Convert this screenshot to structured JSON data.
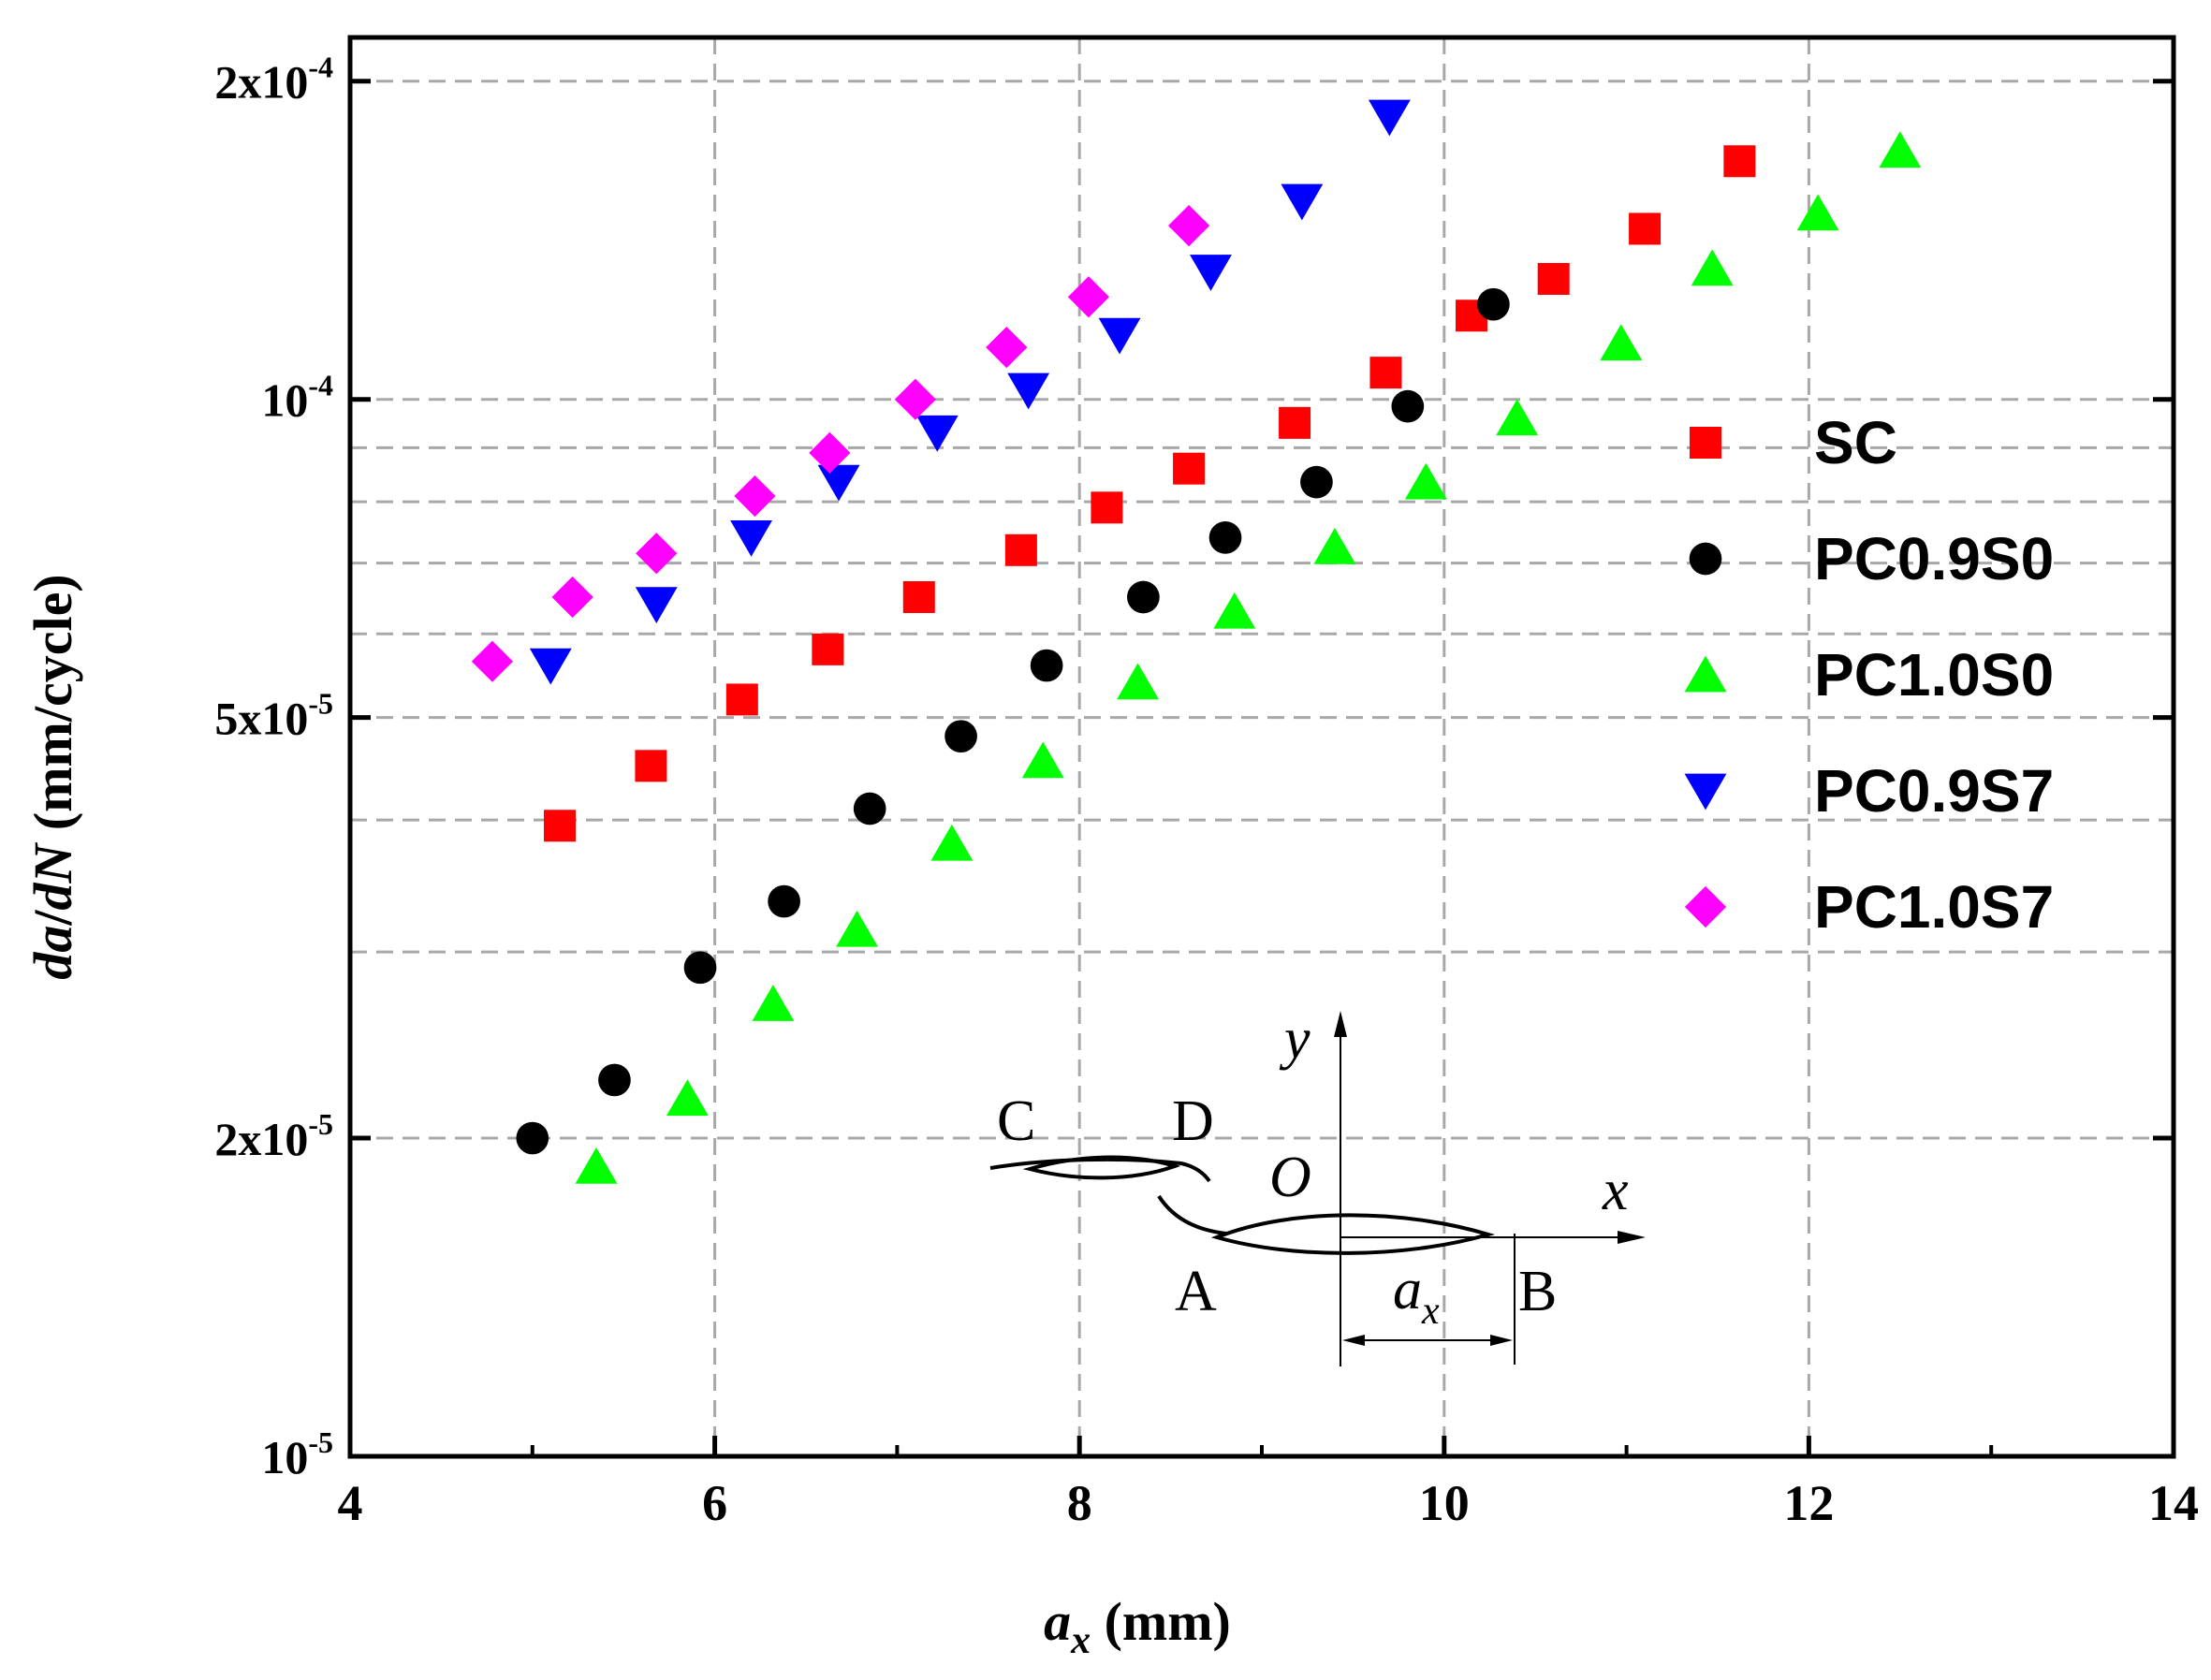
{
  "chart_data": {
    "type": "scatter",
    "title": "",
    "xlabel": {
      "var": "a",
      "sub": "x",
      "unit": " (mm)"
    },
    "ylabel": {
      "var1": "da",
      "slash": "/",
      "var2": "dN",
      "unit": " (mm/cycle)"
    },
    "xlim": [
      4,
      14
    ],
    "ylim": [
      1e-05,
      0.00022
    ],
    "yscale": "log",
    "grid": true,
    "legend_position": "right-middle",
    "x_ticks": [
      {
        "value": 4,
        "label": "4"
      },
      {
        "value": 6,
        "label": "6"
      },
      {
        "value": 8,
        "label": "8"
      },
      {
        "value": 10,
        "label": "10"
      },
      {
        "value": 12,
        "label": "12"
      },
      {
        "value": 14,
        "label": "14"
      }
    ],
    "y_ticks": [
      {
        "value": 1e-05,
        "mant": "",
        "base": "10",
        "exp": "-5"
      },
      {
        "value": 2e-05,
        "mant": "2x",
        "base": "10",
        "exp": "-5"
      },
      {
        "value": 5e-05,
        "mant": "5x",
        "base": "10",
        "exp": "-5"
      },
      {
        "value": 0.0001,
        "mant": "",
        "base": "10",
        "exp": "-4"
      },
      {
        "value": 0.0002,
        "mant": "2x",
        "base": "10",
        "exp": "-4"
      }
    ],
    "series": [
      {
        "name": "SC",
        "marker": "square",
        "color": "#ff0000",
        "points": [
          [
            5.15,
            3.95e-05
          ],
          [
            5.65,
            4.5e-05
          ],
          [
            6.15,
            5.2e-05
          ],
          [
            6.62,
            5.8e-05
          ],
          [
            7.12,
            6.5e-05
          ],
          [
            7.68,
            7.2e-05
          ],
          [
            8.15,
            7.9e-05
          ],
          [
            8.6,
            8.6e-05
          ],
          [
            9.18,
            9.5e-05
          ],
          [
            9.68,
            0.000106
          ],
          [
            10.15,
            0.00012
          ],
          [
            10.6,
            0.00013
          ],
          [
            11.1,
            0.000145
          ],
          [
            11.62,
            0.000168
          ]
        ]
      },
      {
        "name": "PC0.9S0",
        "marker": "circle",
        "color": "#000000",
        "points": [
          [
            5.0,
            2e-05
          ],
          [
            5.45,
            2.27e-05
          ],
          [
            5.92,
            2.9e-05
          ],
          [
            6.38,
            3.35e-05
          ],
          [
            6.85,
            4.1e-05
          ],
          [
            7.35,
            4.8e-05
          ],
          [
            7.82,
            5.6e-05
          ],
          [
            8.35,
            6.5e-05
          ],
          [
            8.8,
            7.4e-05
          ],
          [
            9.3,
            8.35e-05
          ],
          [
            9.8,
            9.85e-05
          ],
          [
            10.27,
            0.000123
          ]
        ]
      },
      {
        "name": "PC1.0S0",
        "marker": "triangle-up",
        "color": "#00ff00",
        "points": [
          [
            5.35,
            1.88e-05
          ],
          [
            5.85,
            2.18e-05
          ],
          [
            6.32,
            2.68e-05
          ],
          [
            6.78,
            3.15e-05
          ],
          [
            7.3,
            3.8e-05
          ],
          [
            7.8,
            4.55e-05
          ],
          [
            8.32,
            5.4e-05
          ],
          [
            8.85,
            6.3e-05
          ],
          [
            9.4,
            7.25e-05
          ],
          [
            9.9,
            8.35e-05
          ],
          [
            10.4,
            9.6e-05
          ],
          [
            10.97,
            0.000113
          ],
          [
            11.47,
            0.000133
          ],
          [
            12.05,
            0.00015
          ],
          [
            12.5,
            0.000172
          ]
        ]
      },
      {
        "name": "PC0.9S7",
        "marker": "triangle-down",
        "color": "#0000ff",
        "points": [
          [
            5.1,
            5.6e-05
          ],
          [
            5.68,
            6.4e-05
          ],
          [
            6.2,
            7.4e-05
          ],
          [
            6.68,
            8.35e-05
          ],
          [
            7.22,
            9.3e-05
          ],
          [
            7.72,
            0.000102
          ],
          [
            8.22,
            0.000115
          ],
          [
            8.72,
            0.000132
          ],
          [
            9.22,
            0.000154
          ],
          [
            9.7,
            0.000185
          ]
        ]
      },
      {
        "name": "PC1.0S7",
        "marker": "diamond",
        "color": "#ff00ff",
        "points": [
          [
            4.78,
            5.65e-05
          ],
          [
            5.22,
            6.5e-05
          ],
          [
            5.68,
            7.15e-05
          ],
          [
            6.22,
            8.1e-05
          ],
          [
            6.63,
            8.9e-05
          ],
          [
            7.1,
            0.0001
          ],
          [
            7.6,
            0.000112
          ],
          [
            8.05,
            0.000125
          ],
          [
            8.6,
            0.000146
          ]
        ]
      }
    ],
    "inset": {
      "labels": {
        "c": "C",
        "d": "D",
        "o": "O",
        "a": "A",
        "b": "B",
        "x": "x",
        "y": "y",
        "ax_var": "a",
        "ax_sub": "x"
      }
    }
  }
}
